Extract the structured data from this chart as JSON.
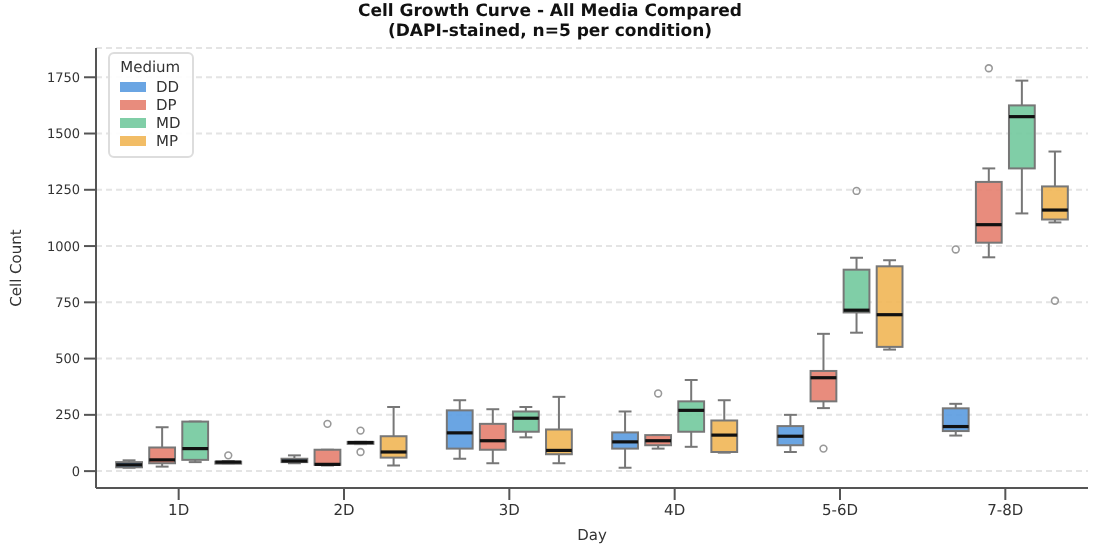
{
  "chart_data": {
    "type": "box",
    "title": "Cell Growth Curve - All Media Compared\n(DAPI-stained, n=5 per condition)",
    "xlabel": "Day",
    "ylabel": "Cell Count",
    "legend_title": "Medium",
    "legend": "top left",
    "grid": "y",
    "categories": [
      "1D",
      "2D",
      "3D",
      "4D",
      "5-6D",
      "7-8D"
    ],
    "ylim": [
      -75,
      1880
    ],
    "yticks": [
      0,
      250,
      500,
      750,
      1000,
      1250,
      1500,
      1750
    ],
    "series": [
      {
        "name": "DD",
        "color": "#5a9be0",
        "boxes": [
          {
            "low": 15,
            "q1": 17,
            "median": 28,
            "q3": 40,
            "high": 48
          },
          {
            "low": 35,
            "q1": 40,
            "median": 45,
            "q3": 55,
            "high": 70
          },
          {
            "low": 55,
            "q1": 100,
            "median": 170,
            "q3": 270,
            "high": 315
          },
          {
            "low": 15,
            "q1": 100,
            "median": 130,
            "q3": 172,
            "high": 265
          },
          {
            "low": 85,
            "q1": 115,
            "median": 155,
            "q3": 200,
            "high": 250
          },
          {
            "low": 158,
            "q1": 178,
            "median": 198,
            "q3": 279,
            "high": 299,
            "outliers": [
              985
            ]
          }
        ]
      },
      {
        "name": "DP",
        "color": "#e5806f",
        "boxes": [
          {
            "low": 20,
            "q1": 35,
            "median": 50,
            "q3": 105,
            "high": 195
          },
          {
            "low": 25,
            "q1": 28,
            "median": 30,
            "q3": 95,
            "high": 95,
            "outliers": [
              210
            ]
          },
          {
            "low": 35,
            "q1": 95,
            "median": 135,
            "q3": 210,
            "high": 275
          },
          {
            "low": 100,
            "q1": 115,
            "median": 135,
            "q3": 160,
            "high": 160,
            "outliers": [
              345
            ]
          },
          {
            "low": 280,
            "q1": 310,
            "median": 415,
            "q3": 445,
            "high": 610,
            "outliers": [
              100
            ]
          },
          {
            "low": 950,
            "q1": 1015,
            "median": 1095,
            "q3": 1285,
            "high": 1345,
            "outliers": [
              1790
            ]
          }
        ]
      },
      {
        "name": "MD",
        "color": "#72c99d",
        "boxes": [
          {
            "low": 40,
            "q1": 50,
            "median": 100,
            "q3": 220,
            "high": 220
          },
          {
            "low": 120,
            "q1": 125,
            "median": 127,
            "q3": 130,
            "high": 130,
            "outliers": [
              180,
              85
            ]
          },
          {
            "low": 150,
            "q1": 175,
            "median": 235,
            "q3": 265,
            "high": 285
          },
          {
            "low": 108,
            "q1": 175,
            "median": 270,
            "q3": 310,
            "high": 405
          },
          {
            "low": 615,
            "q1": 705,
            "median": 715,
            "q3": 895,
            "high": 948,
            "outliers": [
              1245
            ]
          },
          {
            "low": 1145,
            "q1": 1345,
            "median": 1575,
            "q3": 1625,
            "high": 1735
          }
        ]
      },
      {
        "name": "MP",
        "color": "#f1b655",
        "boxes": [
          {
            "low": 35,
            "q1": 37,
            "median": 40,
            "q3": 42,
            "high": 45,
            "outliers": [
              70
            ]
          },
          {
            "low": 25,
            "q1": 60,
            "median": 85,
            "q3": 155,
            "high": 285
          },
          {
            "low": 35,
            "q1": 75,
            "median": 92,
            "q3": 185,
            "high": 330
          },
          {
            "low": 82,
            "q1": 85,
            "median": 160,
            "q3": 225,
            "high": 315
          },
          {
            "low": 540,
            "q1": 552,
            "median": 695,
            "q3": 910,
            "high": 937
          },
          {
            "low": 1105,
            "q1": 1118,
            "median": 1160,
            "q3": 1265,
            "high": 1420,
            "outliers": [
              757
            ]
          }
        ]
      }
    ]
  }
}
